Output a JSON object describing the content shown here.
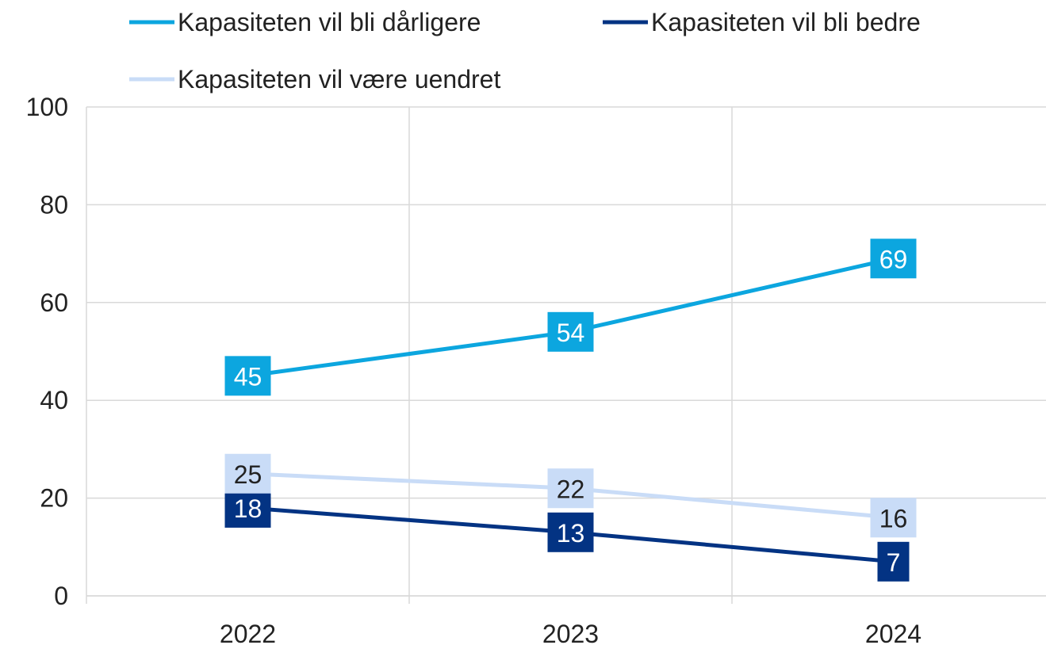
{
  "chart_data": {
    "type": "line",
    "categories": [
      "2022",
      "2023",
      "2024"
    ],
    "series": [
      {
        "name": "Kapasiteten vil bli dårligere",
        "color": "#0ca6df",
        "label_color": "#ffffff",
        "values": [
          45,
          54,
          69
        ]
      },
      {
        "name": "Kapasiteten vil bli bedre",
        "color": "#033383",
        "label_color": "#ffffff",
        "values": [
          18,
          13,
          7
        ]
      },
      {
        "name": "Kapasiteten vil være uendret",
        "color": "#c9dcf7",
        "label_color": "#222222",
        "values": [
          25,
          22,
          16
        ]
      }
    ],
    "ylim": [
      0,
      100
    ],
    "yticks": [
      0,
      20,
      40,
      60,
      80,
      100
    ],
    "grid": true,
    "legend": "top"
  }
}
